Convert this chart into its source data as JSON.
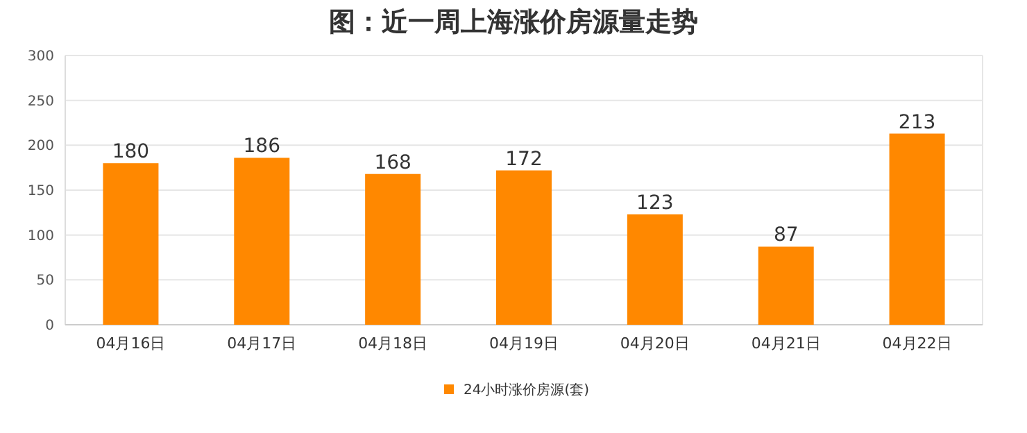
{
  "chart_data": {
    "type": "bar",
    "title": "图：近一周上海涨价房源量走势",
    "categories": [
      "04月16日",
      "04月17日",
      "04月18日",
      "04月19日",
      "04月20日",
      "04月21日",
      "04月22日"
    ],
    "series": [
      {
        "name": "24小时涨价房源(套)",
        "color": "#ff8800",
        "values": [
          180,
          186,
          168,
          172,
          123,
          87,
          213
        ]
      }
    ],
    "ylim": [
      0,
      300
    ],
    "yticks": [
      0,
      50,
      100,
      150,
      200,
      250,
      300
    ],
    "grid": "y",
    "legend": "bottom",
    "data_labels": true
  }
}
